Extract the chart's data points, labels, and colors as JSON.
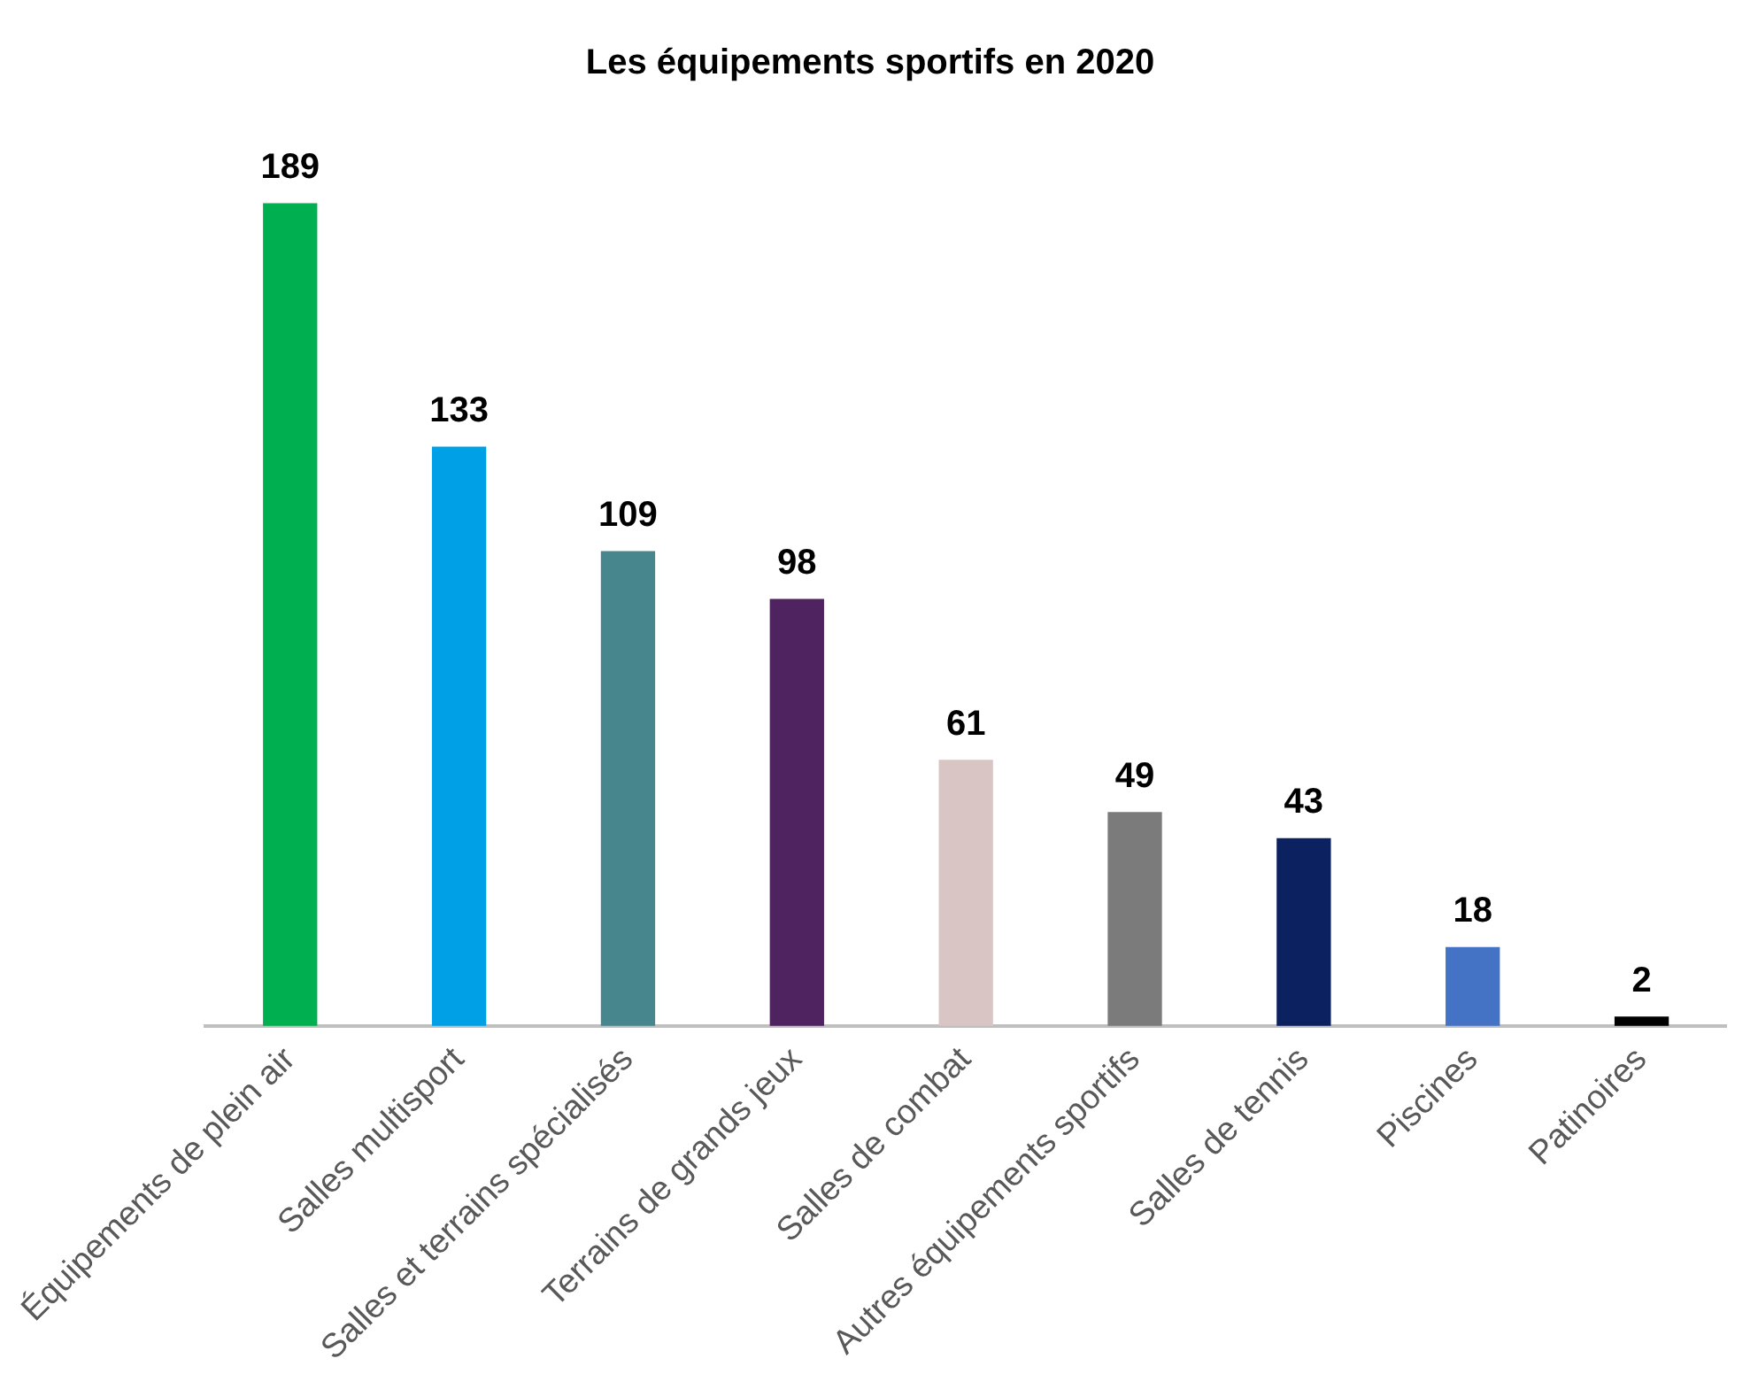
{
  "chart_data": {
    "type": "bar",
    "title": "Les équipements sportifs en 2020",
    "categories": [
      "Équipements de plein air",
      "Salles multisport",
      "Salles et terrains spécialisés",
      "Terrains de grands jeux",
      "Salles de combat",
      "Autres équipements sportifs",
      "Salles de tennis",
      "Piscines",
      "Patinoires"
    ],
    "values": [
      189,
      133,
      109,
      98,
      61,
      49,
      43,
      18,
      2
    ],
    "colors": [
      "#00b050",
      "#00a0e6",
      "#46868c",
      "#4f2360",
      "#d9c6c4",
      "#7b7b7b",
      "#0b2160",
      "#4472c4",
      "#000000"
    ],
    "data_labels": true,
    "grid": false,
    "legend": false
  }
}
